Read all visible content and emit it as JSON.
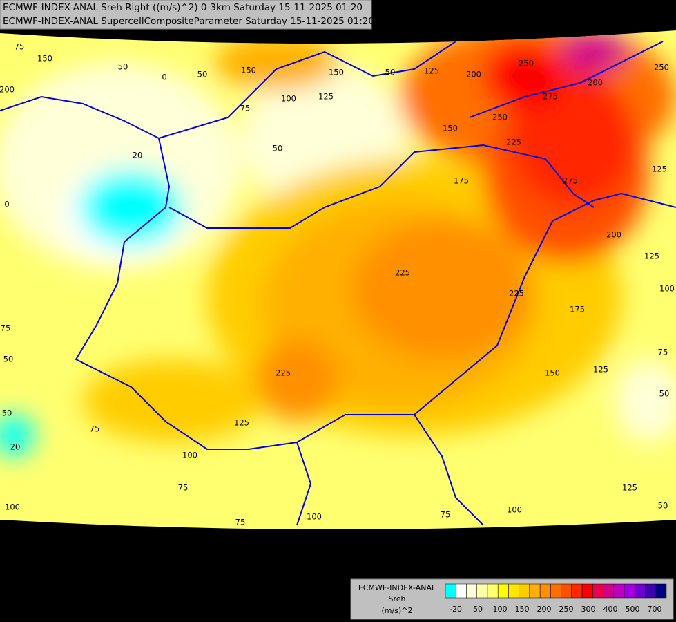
{
  "header": {
    "line1": "ECMWF-INDEX-ANAL Sreh Right ((m/s)^2) 0-3km Saturday 15-11-2025 01:20",
    "line2": "ECMWF-INDEX-ANAL SupercellCompositeParameter Saturday 15-11-2025 01:20"
  },
  "contour_labels": [
    75,
    150,
    50,
    0,
    50,
    200,
    150,
    100,
    150,
    125,
    75,
    50,
    125,
    200,
    250,
    200,
    250,
    275,
    250,
    150,
    225,
    20,
    50,
    175,
    275,
    125,
    0,
    200,
    125,
    225,
    225,
    100,
    175,
    75,
    50,
    225,
    150,
    125,
    75,
    50,
    50,
    75,
    125,
    20,
    100,
    75,
    125,
    100,
    100,
    75,
    75,
    100,
    50
  ],
  "legend": {
    "title": "ECMWF-INDEX-ANAL",
    "variable": "Sreh",
    "unit": "(m/s)^2",
    "colors": [
      "#00ffff",
      "#ffffff",
      "#ffffd8",
      "#ffffa8",
      "#ffff70",
      "#ffff00",
      "#ffe600",
      "#ffcc00",
      "#ffb000",
      "#ff9000",
      "#ff7000",
      "#ff5000",
      "#ff2800",
      "#ff0000",
      "#e8004a",
      "#d0008c",
      "#c000c0",
      "#a000e0",
      "#7000d0",
      "#4000b0",
      "#000080"
    ],
    "labels": [
      -20,
      50,
      100,
      150,
      200,
      250,
      300,
      400,
      500,
      700
    ]
  }
}
